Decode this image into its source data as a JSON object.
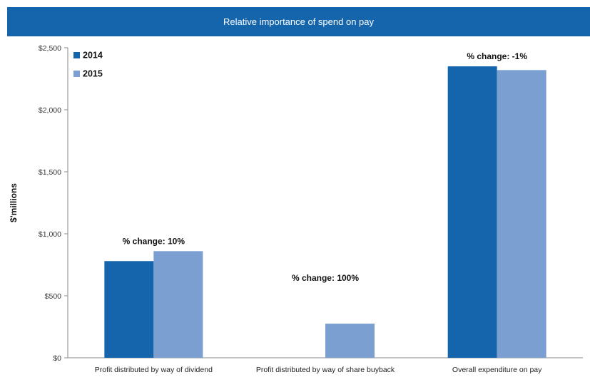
{
  "chart_data": {
    "type": "bar",
    "title": "Relative importance of spend on pay",
    "xlabel": "",
    "ylabel": "$'millions",
    "ylim": [
      0,
      2500
    ],
    "yticks": [
      0,
      500,
      1000,
      1500,
      2000,
      2500
    ],
    "ytick_labels": [
      "$0",
      "$500",
      "$1,000",
      "$1,500",
      "$2,000",
      "$2,500"
    ],
    "categories": [
      "Profit distributed by way of dividend",
      "Profit distributed by way of share buyback",
      "Overall expenditure on pay"
    ],
    "series": [
      {
        "name": "2014",
        "color": "#1565ad",
        "values": [
          780,
          0,
          2350
        ]
      },
      {
        "name": "2015",
        "color": "#7a9fd0",
        "values": [
          860,
          275,
          2320
        ]
      }
    ],
    "annotations": [
      "% change: 10%",
      "% change: 100%",
      "% change: -1%"
    ],
    "grid": false,
    "legend_position": "top-left"
  }
}
